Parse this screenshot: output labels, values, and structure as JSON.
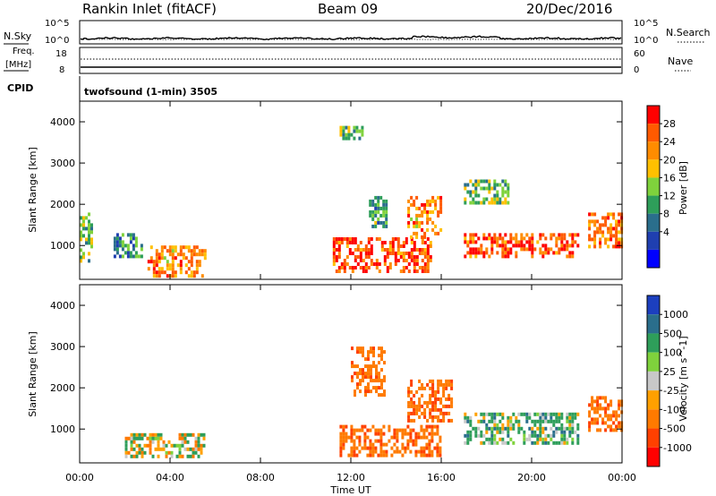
{
  "header": {
    "radar": "Rankin Inlet (fitACF)",
    "beam": "Beam 09",
    "date": "20/Dec/2016"
  },
  "top_panels": {
    "nsky_label": "N.Sky",
    "nsky_ticks": [
      "10^5",
      "10^0"
    ],
    "nsearch_label": "N.Search",
    "freq_label_1": "Freq.",
    "freq_label_2": "[MHz]",
    "freq_ticks": [
      "18",
      "8"
    ],
    "nave_ticks": [
      "60",
      "0"
    ],
    "nave_label": "Nave",
    "cpid_label": "CPID",
    "cpid_text": "twofsound (1-min) 3505"
  },
  "axes": {
    "ylabel": "Slant Range [km]",
    "xlabel": "Time UT",
    "xticks": [
      "00:00",
      "04:00",
      "08:00",
      "12:00",
      "16:00",
      "20:00",
      "00:00"
    ],
    "yticks": [
      "1000",
      "2000",
      "3000",
      "4000"
    ]
  },
  "colorbars": {
    "power": {
      "label": "Power [dB]",
      "ticks": [
        "28",
        "24",
        "20",
        "16",
        "12",
        "8",
        "4"
      ],
      "colors": [
        "#ff0000",
        "#ff5a00",
        "#ff8c00",
        "#ffc000",
        "#7fd23c",
        "#2e9e5a",
        "#2a6e8c",
        "#1f3fb0",
        "#0000ff"
      ]
    },
    "velocity": {
      "label": "Velocity [m s^-1]",
      "ticks": [
        "1000",
        "500",
        "100",
        "25",
        "-25",
        "-100",
        "-500",
        "-1000"
      ],
      "colors": [
        "#1c3fbf",
        "#2a6e8c",
        "#2e9e5a",
        "#7fd23c",
        "#c8c8c8",
        "#ffa000",
        "#ff7a00",
        "#ff4000",
        "#ff0000"
      ]
    }
  },
  "chart_data": [
    {
      "type": "heatmap",
      "title": "Power",
      "xlabel": "Time UT",
      "ylabel": "Slant Range [km]",
      "xlim": [
        0,
        24
      ],
      "ylim": [
        180,
        4500
      ],
      "colorbar_label": "Power [dB]",
      "colorbar_range": [
        0,
        32
      ],
      "regions": [
        {
          "t": [
            0.0,
            0.5
          ],
          "r": [
            600,
            1800
          ],
          "v": 14
        },
        {
          "t": [
            1.5,
            2.7
          ],
          "r": [
            700,
            1300
          ],
          "v": 10
        },
        {
          "t": [
            3.0,
            5.5
          ],
          "r": [
            300,
            1000
          ],
          "v": 24
        },
        {
          "t": [
            11.2,
            15.5
          ],
          "r": [
            350,
            1200
          ],
          "v": 28
        },
        {
          "t": [
            11.5,
            12.5
          ],
          "r": [
            3600,
            3900
          ],
          "v": 14
        },
        {
          "t": [
            12.8,
            13.6
          ],
          "r": [
            1500,
            2200
          ],
          "v": 12
        },
        {
          "t": [
            14.5,
            16.0
          ],
          "r": [
            1200,
            2200
          ],
          "v": 24
        },
        {
          "t": [
            17.0,
            19.0
          ],
          "r": [
            2000,
            2600
          ],
          "v": 14
        },
        {
          "t": [
            17.0,
            22.0
          ],
          "r": [
            700,
            1300
          ],
          "v": 28
        },
        {
          "t": [
            22.5,
            24.0
          ],
          "r": [
            1000,
            1800
          ],
          "v": 26
        }
      ]
    },
    {
      "type": "heatmap",
      "title": "Velocity",
      "xlabel": "Time UT",
      "ylabel": "Slant Range [km]",
      "xlim": [
        0,
        24
      ],
      "ylim": [
        180,
        4500
      ],
      "colorbar_label": "Velocity [m s^-1]",
      "colorbar_range": [
        -1000,
        1000
      ],
      "regions": [
        {
          "t": [
            2.0,
            5.5
          ],
          "r": [
            300,
            900
          ],
          "v": 0
        },
        {
          "t": [
            11.5,
            16.0
          ],
          "r": [
            350,
            1100
          ],
          "v": -400
        },
        {
          "t": [
            12.0,
            13.5
          ],
          "r": [
            1800,
            3000
          ],
          "v": -400
        },
        {
          "t": [
            14.5,
            16.5
          ],
          "r": [
            1200,
            2200
          ],
          "v": -400
        },
        {
          "t": [
            17.0,
            22.0
          ],
          "r": [
            700,
            1400
          ],
          "v": 150
        },
        {
          "t": [
            22.5,
            24.0
          ],
          "r": [
            1000,
            1800
          ],
          "v": -400
        }
      ]
    }
  ]
}
